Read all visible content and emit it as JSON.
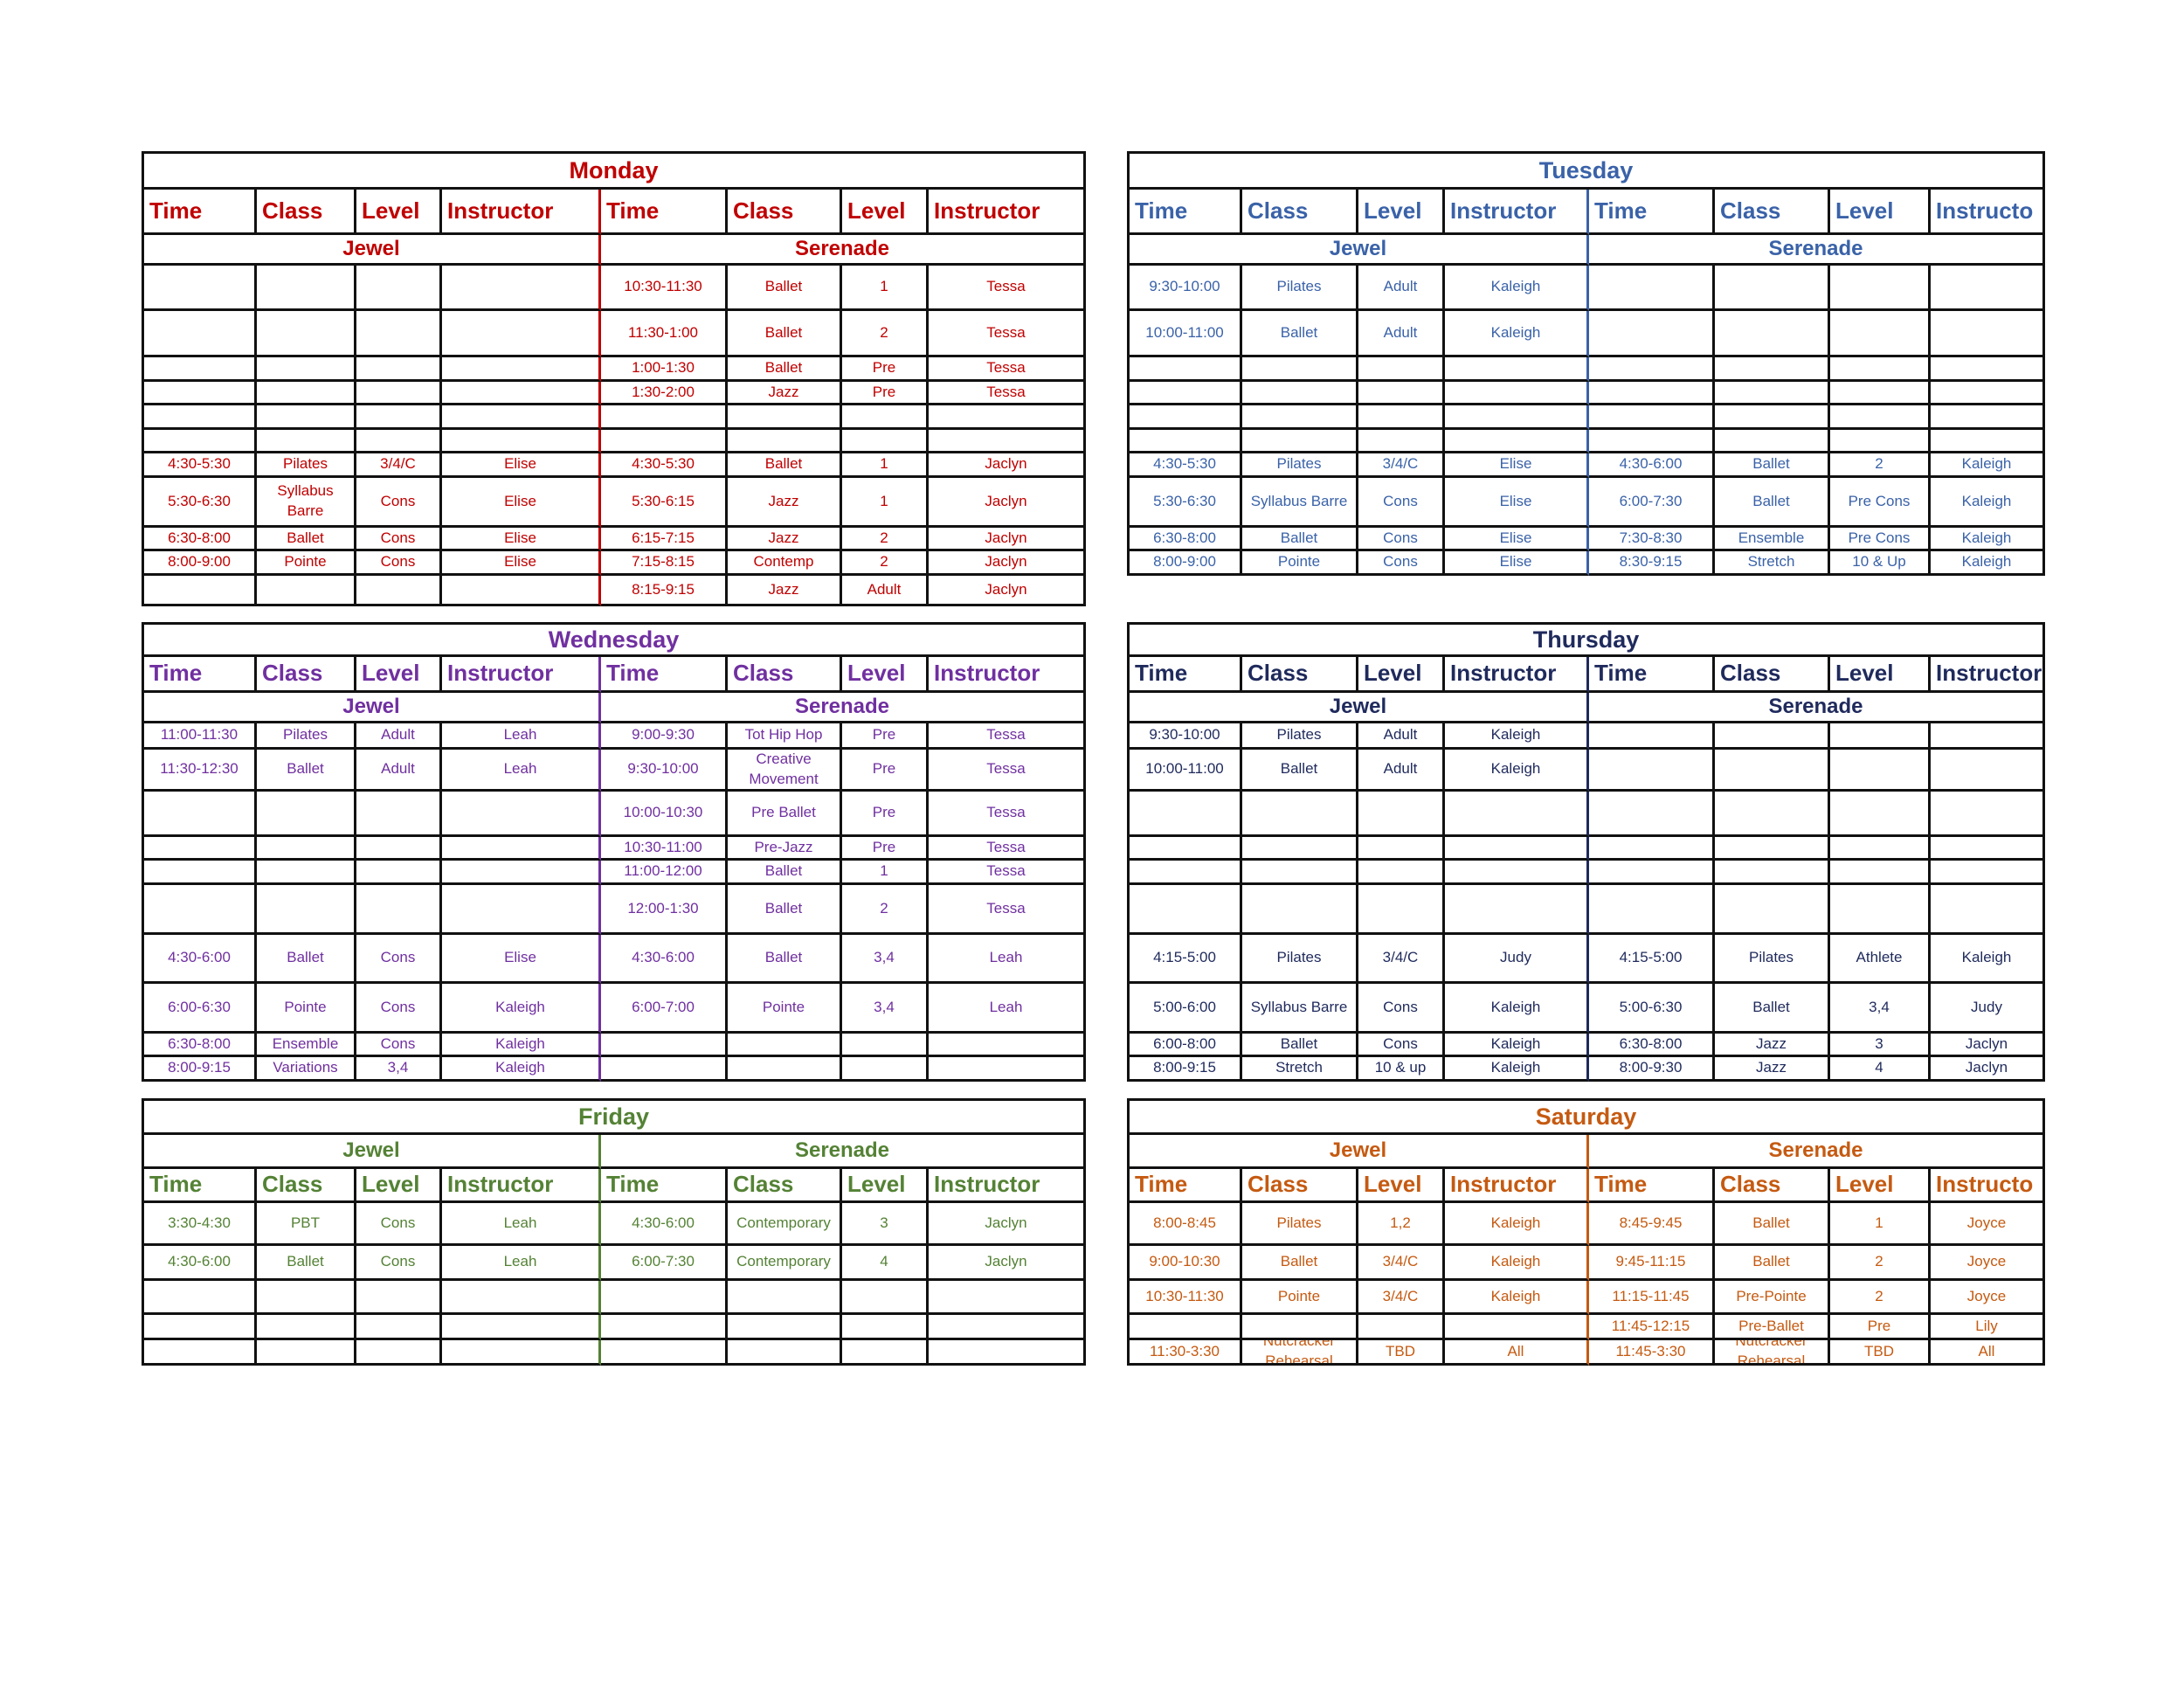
{
  "days": [
    {
      "title": "Monday",
      "color": "#c00000",
      "groups": [
        "Jewel",
        "Serenade"
      ],
      "group_first": false,
      "headers": [
        "Time",
        "Class",
        "Level",
        "Instructor",
        "Time",
        "Class",
        "Level",
        "Instructor"
      ],
      "rows": [
        [
          "",
          "",
          "",
          "",
          "10:30-11:30",
          "Ballet",
          "1",
          "Tessa"
        ],
        [
          "",
          "",
          "",
          "",
          "11:30-1:00",
          "Ballet",
          "2",
          "Tessa"
        ],
        [
          "",
          "",
          "",
          "",
          "1:00-1:30",
          "Ballet",
          "Pre",
          "Tessa"
        ],
        [
          "",
          "",
          "",
          "",
          "1:30-2:00",
          "Jazz",
          "Pre",
          "Tessa"
        ],
        [
          "",
          "",
          "",
          "",
          "",
          "",
          "",
          ""
        ],
        [
          "",
          "",
          "",
          "",
          "",
          "",
          "",
          ""
        ],
        [
          "4:30-5:30",
          "Pilates",
          "3/4/C",
          "Elise",
          "4:30-5:30",
          "Ballet",
          "1",
          "Jaclyn"
        ],
        [
          "5:30-6:30",
          "Syllabus Barre",
          "Cons",
          "Elise",
          "5:30-6:15",
          "Jazz",
          "1",
          "Jaclyn"
        ],
        [
          "6:30-8:00",
          "Ballet",
          "Cons",
          "Elise",
          "6:15-7:15",
          "Jazz",
          "2",
          "Jaclyn"
        ],
        [
          "8:00-9:00",
          "Pointe",
          "Cons",
          "Elise",
          "7:15-8:15",
          "Contemp",
          "2",
          "Jaclyn"
        ],
        [
          "",
          "",
          "",
          "",
          "8:15-9:15",
          "Jazz",
          "Adult",
          "Jaclyn"
        ]
      ]
    },
    {
      "title": "Tuesday",
      "color": "#3a62a8",
      "groups": [
        "Jewel",
        "Serenade"
      ],
      "group_first": false,
      "headers": [
        "Time",
        "Class",
        "Level",
        "Instructor",
        "Time",
        "Class",
        "Level",
        "Instructo"
      ],
      "rows": [
        [
          "9:30-10:00",
          "Pilates",
          "Adult",
          "Kaleigh",
          "",
          "",
          "",
          ""
        ],
        [
          "10:00-11:00",
          "Ballet",
          "Adult",
          "Kaleigh",
          "",
          "",
          "",
          ""
        ],
        [
          "",
          "",
          "",
          "",
          "",
          "",
          "",
          ""
        ],
        [
          "",
          "",
          "",
          "",
          "",
          "",
          "",
          ""
        ],
        [
          "",
          "",
          "",
          "",
          "",
          "",
          "",
          ""
        ],
        [
          "",
          "",
          "",
          "",
          "",
          "",
          "",
          ""
        ],
        [
          "4:30-5:30",
          "Pilates",
          "3/4/C",
          "Elise",
          "4:30-6:00",
          "Ballet",
          "2",
          "Kaleigh"
        ],
        [
          "5:30-6:30",
          "Syllabus Barre",
          "Cons",
          "Elise",
          "6:00-7:30",
          "Ballet",
          "Pre Cons",
          "Kaleigh"
        ],
        [
          "6:30-8:00",
          "Ballet",
          "Cons",
          "Elise",
          "7:30-8:30",
          "Ensemble",
          "Pre Cons",
          "Kaleigh"
        ],
        [
          "8:00-9:00",
          "Pointe",
          "Cons",
          "Elise",
          "8:30-9:15",
          "Stretch",
          "10 & Up",
          "Kaleigh"
        ]
      ]
    },
    {
      "title": "Wednesday",
      "color": "#7030a0",
      "groups": [
        "Jewel",
        "Serenade"
      ],
      "group_first": false,
      "headers": [
        "Time",
        "Class",
        "Level",
        "Instructor",
        "Time",
        "Class",
        "Level",
        "Instructor"
      ],
      "rows": [
        [
          "11:00-11:30",
          "Pilates",
          "Adult",
          "Leah",
          "9:00-9:30",
          "Tot Hip Hop",
          "Pre",
          "Tessa"
        ],
        [
          "11:30-12:30",
          "Ballet",
          "Adult",
          "Leah",
          "9:30-10:00",
          "Creative Movement",
          "Pre",
          "Tessa"
        ],
        [
          "",
          "",
          "",
          "",
          "10:00-10:30",
          "Pre Ballet",
          "Pre",
          "Tessa"
        ],
        [
          "",
          "",
          "",
          "",
          "10:30-11:00",
          "Pre-Jazz",
          "Pre",
          "Tessa"
        ],
        [
          "",
          "",
          "",
          "",
          "11:00-12:00",
          "Ballet",
          "1",
          "Tessa"
        ],
        [
          "",
          "",
          "",
          "",
          "12:00-1:30",
          "Ballet",
          "2",
          "Tessa"
        ],
        [
          "4:30-6:00",
          "Ballet",
          "Cons",
          "Elise",
          "4:30-6:00",
          "Ballet",
          "3,4",
          "Leah"
        ],
        [
          "6:00-6:30",
          "Pointe",
          "Cons",
          "Kaleigh",
          "6:00-7:00",
          "Pointe",
          "3,4",
          "Leah"
        ],
        [
          "6:30-8:00",
          "Ensemble",
          "Cons",
          "Kaleigh",
          "",
          "",
          "",
          ""
        ],
        [
          "8:00-9:15",
          "Variations",
          "3,4",
          "Kaleigh",
          "",
          "",
          "",
          ""
        ]
      ]
    },
    {
      "title": "Thursday",
      "color": "#1f2a5c",
      "groups": [
        "Jewel",
        "Serenade"
      ],
      "group_first": false,
      "headers": [
        "Time",
        "Class",
        "Level",
        "Instructor",
        "Time",
        "Class",
        "Level",
        "Instructor"
      ],
      "rows": [
        [
          "9:30-10:00",
          "Pilates",
          "Adult",
          "Kaleigh",
          "",
          "",
          "",
          ""
        ],
        [
          "10:00-11:00",
          "Ballet",
          "Adult",
          "Kaleigh",
          "",
          "",
          "",
          ""
        ],
        [
          "",
          "",
          "",
          "",
          "",
          "",
          "",
          ""
        ],
        [
          "",
          "",
          "",
          "",
          "",
          "",
          "",
          ""
        ],
        [
          "",
          "",
          "",
          "",
          "",
          "",
          "",
          ""
        ],
        [
          "",
          "",
          "",
          "",
          "",
          "",
          "",
          ""
        ],
        [
          "4:15-5:00",
          "Pilates",
          "3/4/C",
          "Judy",
          "4:15-5:00",
          "Pilates",
          "Athlete",
          "Kaleigh"
        ],
        [
          "5:00-6:00",
          "Syllabus Barre",
          "Cons",
          "Kaleigh",
          "5:00-6:30",
          "Ballet",
          "3,4",
          "Judy"
        ],
        [
          "6:00-8:00",
          "Ballet",
          "Cons",
          "Kaleigh",
          "6:30-8:00",
          "Jazz",
          "3",
          "Jaclyn"
        ],
        [
          "8:00-9:15",
          "Stretch",
          "10 & up",
          "Kaleigh",
          "8:00-9:30",
          "Jazz",
          "4",
          "Jaclyn"
        ]
      ]
    },
    {
      "title": "Friday",
      "color": "#548235",
      "groups": [
        "Jewel",
        "Serenade"
      ],
      "group_first": true,
      "headers": [
        "Time",
        "Class",
        "Level",
        "Instructor",
        "Time",
        "Class",
        "Level",
        "Instructor"
      ],
      "rows": [
        [
          "3:30-4:30",
          "PBT",
          "Cons",
          "Leah",
          "4:30-6:00",
          "Contemporary",
          "3",
          "Jaclyn"
        ],
        [
          "4:30-6:00",
          "Ballet",
          "Cons",
          "Leah",
          "6:00-7:30",
          "Contemporary",
          "4",
          "Jaclyn"
        ],
        [
          "",
          "",
          "",
          "",
          "",
          "",
          "",
          ""
        ],
        [
          "",
          "",
          "",
          "",
          "",
          "",
          "",
          ""
        ],
        [
          "",
          "",
          "",
          "",
          "",
          "",
          "",
          ""
        ]
      ]
    },
    {
      "title": "Saturday",
      "color": "#c55a11",
      "groups": [
        "Jewel",
        "Serenade"
      ],
      "group_first": true,
      "headers": [
        "Time",
        "Class",
        "Level",
        "Instructor",
        "Time",
        "Class",
        "Level",
        "Instructo"
      ],
      "rows": [
        [
          "8:00-8:45",
          "Pilates",
          "1,2",
          "Kaleigh",
          "8:45-9:45",
          "Ballet",
          "1",
          "Joyce"
        ],
        [
          "9:00-10:30",
          "Ballet",
          "3/4/C",
          "Kaleigh",
          "9:45-11:15",
          "Ballet",
          "2",
          "Joyce"
        ],
        [
          "10:30-11:30",
          "Pointe",
          "3/4/C",
          "Kaleigh",
          "11:15-11:45",
          "Pre-Pointe",
          "2",
          "Joyce"
        ],
        [
          "",
          "",
          "",
          "",
          "11:45-12:15",
          "Pre-Ballet",
          "Pre",
          "Lily"
        ],
        [
          "11:30-3:30",
          "Nutcracker Rehearsal",
          "TBD",
          "All",
          "11:45-3:30",
          "Nutcracker Rehearsal",
          "TBD",
          "All"
        ]
      ]
    }
  ]
}
